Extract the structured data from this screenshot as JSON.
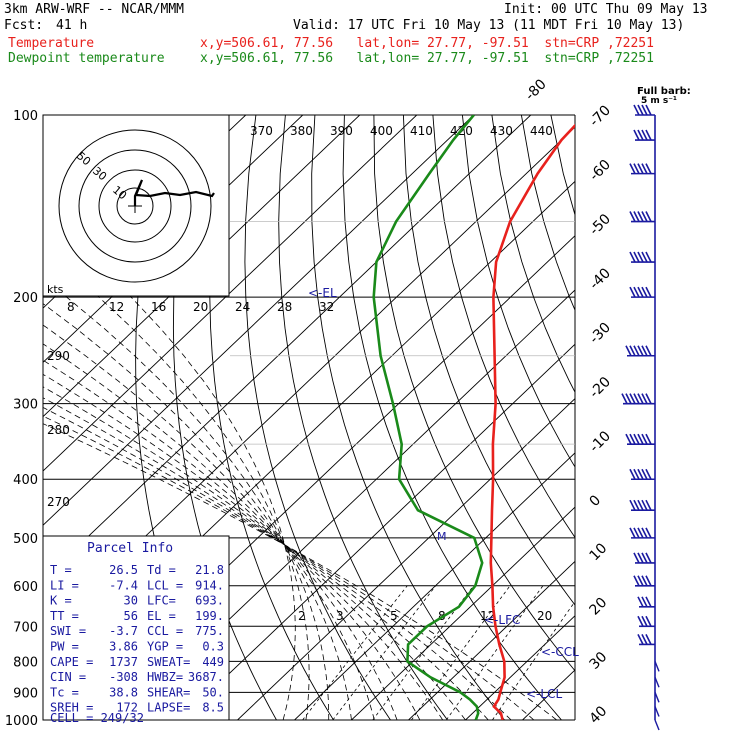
{
  "header": {
    "model": "3km ARW-WRF -- NCAR/MMM",
    "init": "Init: 00 UTC Thu 09 May 13",
    "fcst_label": "Fcst:",
    "fcst_value": "41 h",
    "valid": "Valid: 17 UTC Fri 10 May 13 (11 MDT Fri 10 May 13)",
    "lines": [
      {
        "name": "Temperature",
        "info": "x,y=506.61, 77.56   lat,lon= 27.77, -97.51  stn=CRP ,72251",
        "color": "#e8211d"
      },
      {
        "name": "Dewpoint temperature",
        "info": "x,y=506.61, 77.56   lat,lon= 27.77, -97.51  stn=CRP ,72251",
        "color": "#1a8a1a"
      }
    ]
  },
  "barb_label": {
    "line1": "Full barb:",
    "line2": "5 m s⁻¹"
  },
  "hodograph": {
    "unit_label": "kts",
    "ring_labels": [
      "10",
      "30",
      "50"
    ],
    "theta_labels": [
      "370",
      "380",
      "390",
      "400",
      "410",
      "420",
      "430",
      "440"
    ],
    "wbulb_labels": [
      "8",
      "12",
      "16",
      "20",
      "24",
      "28",
      "32"
    ]
  },
  "parcel": {
    "title": "Parcel Info",
    "rows": [
      [
        "T  =",
        "26.5",
        "Td =",
        "21.8"
      ],
      [
        "LI =",
        "-7.4",
        "LCL =",
        "914."
      ],
      [
        "K  =",
        "30",
        "LFC=",
        "693."
      ],
      [
        "TT =",
        "56",
        "EL =",
        "199."
      ],
      [
        "SWI =",
        "-3.7",
        "CCL =",
        "775."
      ],
      [
        "PW =",
        "3.86",
        "YGP =",
        "0.3"
      ],
      [
        "CAPE =",
        "1737",
        "SWEAT=",
        "449"
      ],
      [
        "CIN =",
        "-308",
        "HWBZ=",
        "3687."
      ],
      [
        "Tc =",
        "38.8",
        "SHEAR=",
        "50."
      ],
      [
        "SREH =",
        "172",
        "LAPSE=",
        "8.5"
      ]
    ],
    "cell": "CELL = 249/32"
  },
  "level_markers": [
    "<-EL",
    "<-LFC",
    "<-CCL",
    "<-LCL"
  ],
  "mixing_ratio_labels": [
    "2",
    "3",
    "5",
    "8",
    "12",
    "20"
  ],
  "theta_side_labels": [
    "290",
    "280",
    "270"
  ],
  "chart_data": {
    "type": "line",
    "title": "",
    "xlabel": "",
    "ylabel": "",
    "pressure_levels": [
      100,
      200,
      300,
      400,
      500,
      600,
      700,
      800,
      900,
      1000
    ],
    "isotherm_labels": [
      -80,
      -70,
      -60,
      -50,
      -40,
      -30,
      -20,
      -10,
      0,
      10,
      20,
      30,
      40
    ],
    "series": [
      {
        "name": "Temperature",
        "color": "#e8211d",
        "pressure": [
          1000,
          975,
          950,
          925,
          900,
          850,
          800,
          750,
          700,
          650,
          600,
          550,
          500,
          450,
          400,
          350,
          300,
          250,
          200,
          175,
          150,
          125,
          110,
          100
        ],
        "temperature": [
          26.5,
          25.0,
          22.5,
          22.0,
          21.0,
          19.0,
          16.0,
          12.0,
          8.0,
          4.0,
          0.0,
          -4.5,
          -9.0,
          -14.0,
          -19.5,
          -26.0,
          -33.0,
          -42.0,
          -53.0,
          -59.0,
          -64.0,
          -68.0,
          -70.0,
          -70.5
        ]
      },
      {
        "name": "Dewpoint temperature",
        "color": "#1a8a1a",
        "pressure": [
          1000,
          975,
          950,
          925,
          900,
          850,
          800,
          750,
          700,
          650,
          600,
          550,
          500,
          450,
          400,
          350,
          300,
          250,
          200,
          175,
          150,
          125,
          110,
          100
        ],
        "temperature": [
          21.8,
          21.0,
          19.5,
          17.0,
          14.0,
          6.0,
          -1.0,
          -4.0,
          -4.0,
          -2.0,
          -3.0,
          -6.0,
          -12.0,
          -27.0,
          -36.0,
          -42.0,
          -51.0,
          -62.0,
          -74.0,
          -80.0,
          -84.0,
          -87.0,
          -89.0,
          -90.0
        ]
      }
    ],
    "wind_barbs": {
      "pressure": [
        100,
        110,
        125,
        150,
        175,
        200,
        250,
        300,
        350,
        400,
        450,
        500,
        550,
        600,
        650,
        700,
        750,
        800,
        850,
        900,
        950,
        1000
      ],
      "speed_ms": [
        20,
        20,
        25,
        25,
        25,
        25,
        30,
        35,
        30,
        25,
        25,
        25,
        20,
        20,
        15,
        15,
        15,
        10,
        10,
        10,
        10,
        5
      ]
    }
  }
}
